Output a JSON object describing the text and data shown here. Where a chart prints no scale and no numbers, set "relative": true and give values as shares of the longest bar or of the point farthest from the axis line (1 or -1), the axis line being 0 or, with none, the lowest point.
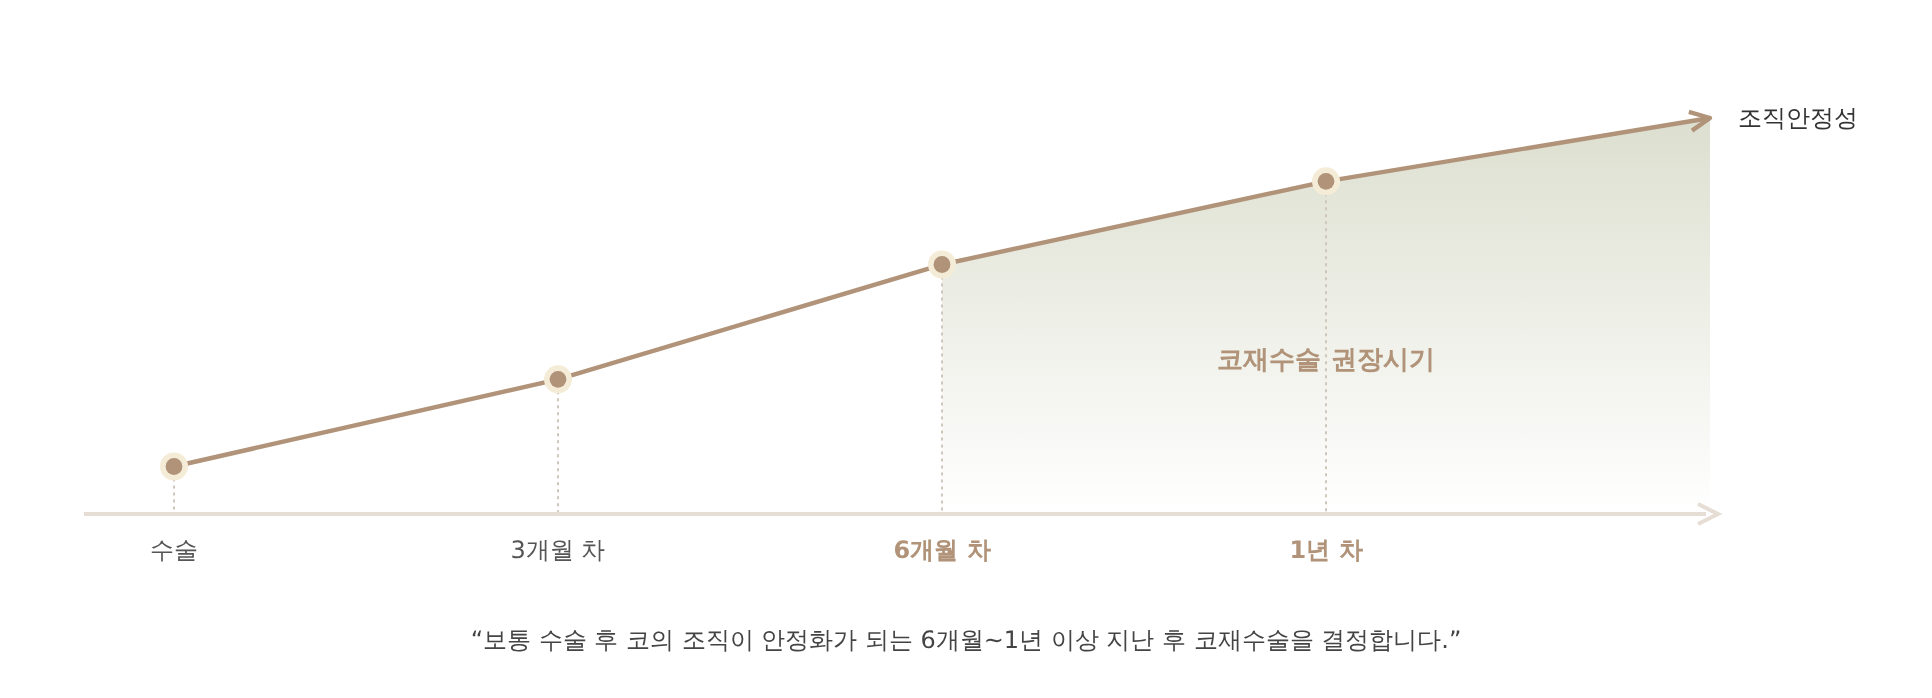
{
  "chart_data": {
    "type": "line",
    "relative": true,
    "ylabel": "조직안정성",
    "categories": [
      "수술",
      "3개월 차",
      "6개월 차",
      "1년 차",
      null
    ],
    "series": [
      {
        "color": "#b09378",
        "values": [
          0.12,
          0.34,
          0.63,
          0.84,
          1.0
        ]
      },
      {
        "type": "area",
        "color": "#dcdfcf",
        "values": [
          null,
          null,
          0.63,
          0.84,
          1.0
        ]
      }
    ],
    "marker": "circle",
    "ref_lines": [
      {
        "axis": "x",
        "value": "수술",
        "color": "#cfc6bc",
        "line_style": "dotted"
      },
      {
        "axis": "x",
        "value": "3개월 차",
        "color": "#cfc6bc",
        "line_style": "dotted"
      },
      {
        "axis": "x",
        "value": "6개월 차",
        "color": "#cfc6bc",
        "line_style": "dotted"
      },
      {
        "axis": "x",
        "value": "1년 차",
        "color": "#cfc6bc",
        "line_style": "dotted"
      }
    ],
    "annotations": [
      "코재수술 권장시기",
      "“보통 수술 후 코의 조직이 안정화가 되는 6개월~1년 이상 지난 후 코재수술을 결정합니다.”"
    ]
  }
}
